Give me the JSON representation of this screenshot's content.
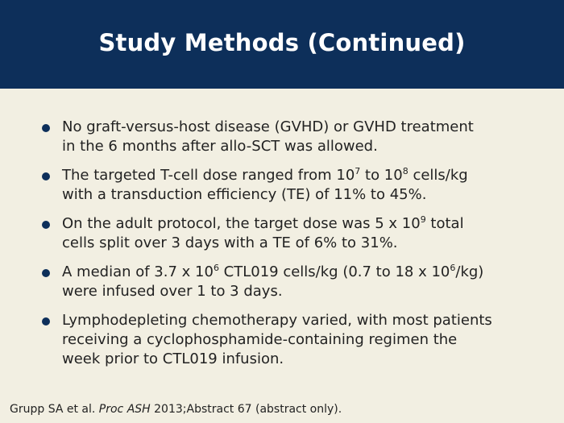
{
  "slide": {
    "title": "Study Methods (Continued)"
  },
  "bullets": [
    {
      "line1": "No graft-versus-host disease (GVHD) or GVHD treatment",
      "line2": "in the 6 months after allo-SCT was allowed."
    },
    {
      "pre": "The targeted T-cell dose ranged from 10",
      "sup1": "7",
      "mid": " to 10",
      "sup2": "8",
      "post": " cells/kg",
      "line2": "with a transduction efficiency (TE) of 11% to 45%."
    },
    {
      "pre": "On the adult protocol, the target dose was 5 x 10",
      "sup1": "9",
      "post": " total",
      "line2": "cells split over 3 days with a TE of 6% to 31%."
    },
    {
      "pre": "A median of 3.7 x 10",
      "sup1": "6",
      "mid": " CTL019 cells/kg (0.7 to 18 x 10",
      "sup2": "6",
      "post": "/kg)",
      "line2": "were infused over 1 to 3 days."
    },
    {
      "line1": "Lymphodepleting chemotherapy varied, with most patients",
      "line2": "receiving a cyclophosphamide-containing regimen the",
      "line3": "week prior to CTL019 infusion."
    }
  ],
  "footer": {
    "authors": "Grupp SA et al. ",
    "journal": "Proc ASH",
    "rest": " 2013;Abstract 67 (abstract only)."
  },
  "colors": {
    "header_bg": "#0D2F5A",
    "body_bg": "#F2EFE2",
    "bullet_dot": "#0D2F5A"
  }
}
